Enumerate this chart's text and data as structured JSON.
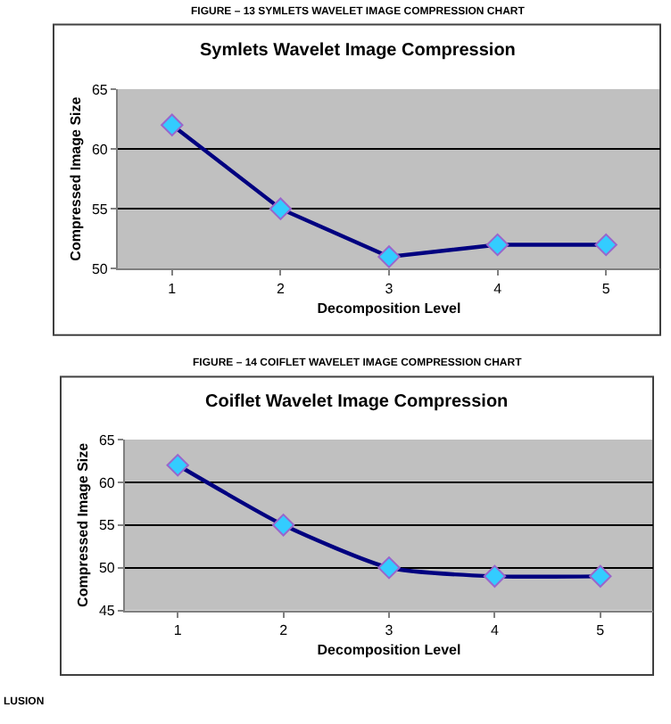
{
  "chart_data": [
    {
      "type": "line",
      "title": "Symlets Wavelet Image Compression",
      "xlabel": "Decomposition Level",
      "ylabel": "Compressed Image Size",
      "annotations": [
        "FIGURE – 13 SYMLETS WAVELET IMAGE COMPRESSION CHART"
      ],
      "categories": [
        "1",
        "2",
        "3",
        "4",
        "5"
      ],
      "series": [
        {
          "color": "#000080",
          "values": [
            62,
            55,
            51,
            52,
            52
          ]
        }
      ],
      "ylim": [
        50,
        65
      ],
      "yticks": [
        50,
        55,
        60,
        65
      ],
      "grid": "y",
      "marker": "diamond",
      "line_style": "solid"
    },
    {
      "type": "line",
      "title": "Coiflet Wavelet Image Compression",
      "xlabel": "Decomposition Level",
      "ylabel": "Compressed Image Size",
      "annotations": [
        "FIGURE – 14 COIFLET WAVELET IMAGE COMPRESSION CHART",
        "LUSION"
      ],
      "categories": [
        "1",
        "2",
        "3",
        "4",
        "5"
      ],
      "series": [
        {
          "color": "#000080",
          "values": [
            62,
            55,
            50,
            49,
            49
          ]
        }
      ],
      "ylim": [
        45,
        65
      ],
      "yticks": [
        45,
        50,
        55,
        60,
        65
      ],
      "grid": "y",
      "marker": "diamond",
      "line_style": "solid"
    }
  ]
}
